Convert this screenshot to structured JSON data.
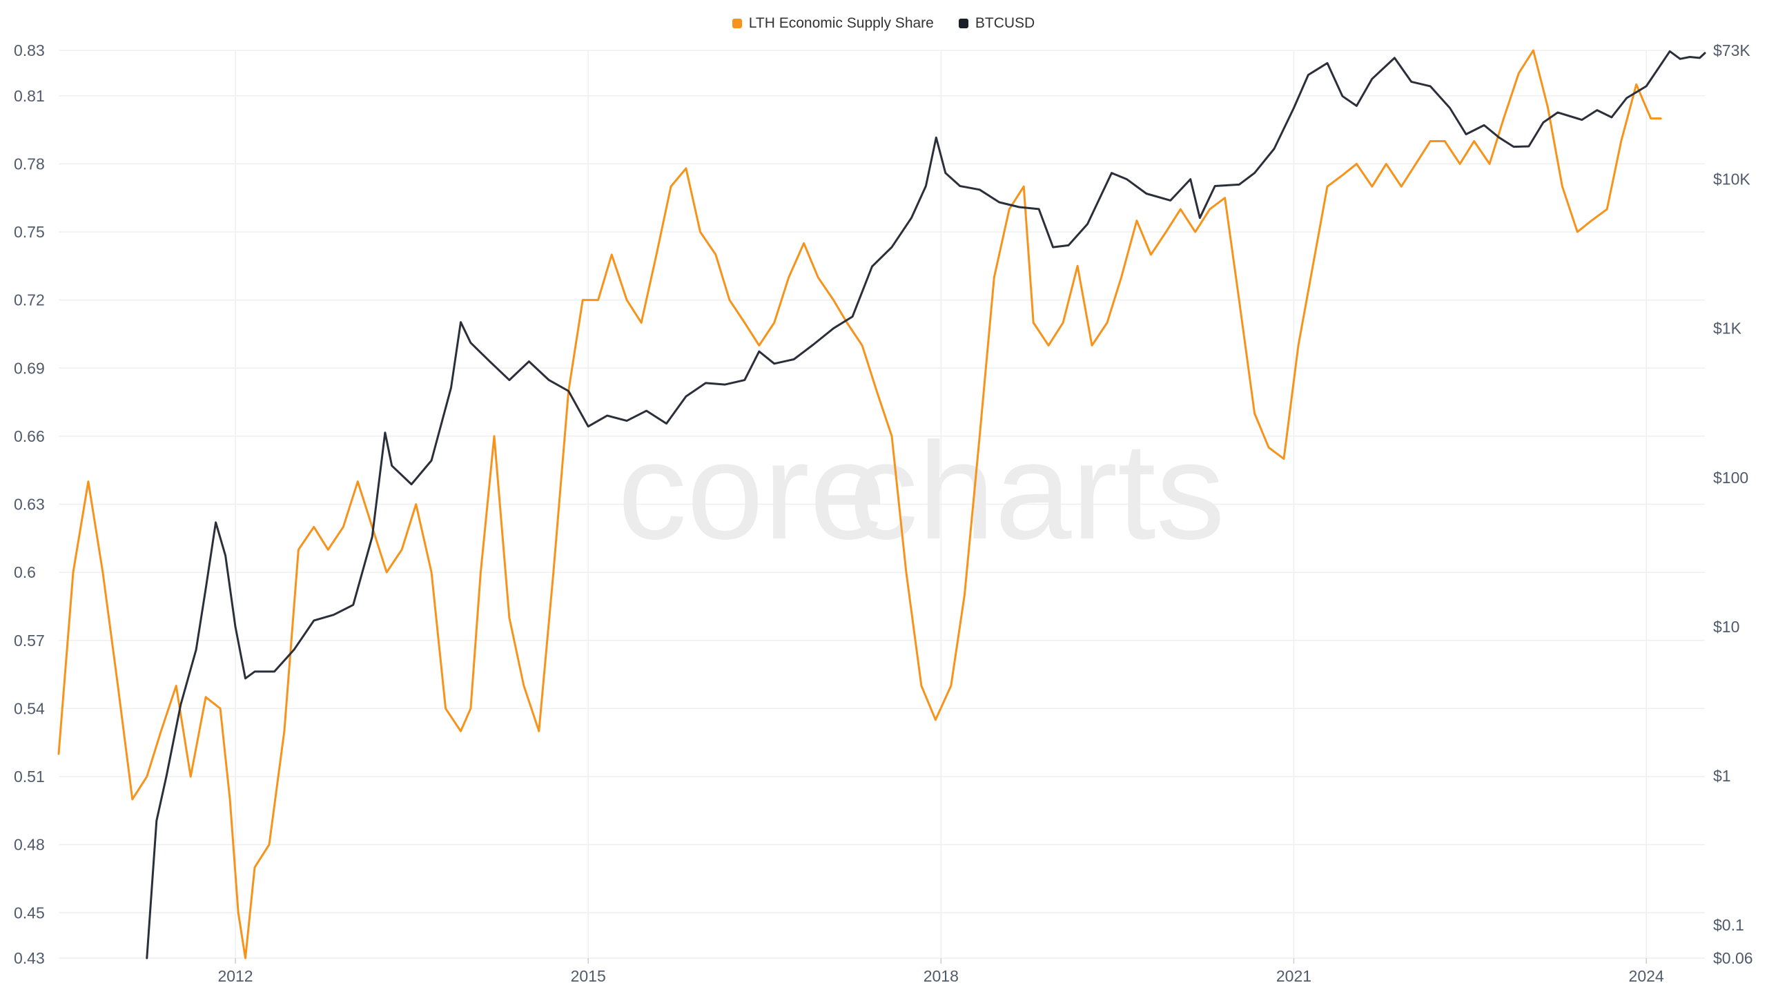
{
  "legend": [
    {
      "label": "LTH Economic Supply Share",
      "color": "#f7931a"
    },
    {
      "label": "BTCUSD",
      "color": "#1b1f2a"
    }
  ],
  "watermark": {
    "part1": "core",
    "part2": "charts"
  },
  "colors": {
    "lth": "#f7931a",
    "btc": "#2b2f3a",
    "grid": "#efefef",
    "axis_text": "#505a6b"
  },
  "chart_data": {
    "type": "line",
    "title": "",
    "xlabel": "",
    "ylabel": "",
    "grid": true,
    "legend_position": "top-center",
    "x_ticks": [
      "2012",
      "2015",
      "2018",
      "2021",
      "2024"
    ],
    "y_left": {
      "ticks": [
        "0.83",
        "0.81",
        "0.78",
        "0.75",
        "0.72",
        "0.69",
        "0.66",
        "0.63",
        "0.6",
        "0.57",
        "0.54",
        "0.51",
        "0.48",
        "0.45",
        "0.43"
      ],
      "range": [
        0.43,
        0.83
      ]
    },
    "y_right": {
      "scale": "log",
      "ticks": [
        "$73K",
        "$10K",
        "$1K",
        "$100",
        "$10",
        "$1",
        "$0.1",
        "$0.06"
      ],
      "tick_values": [
        73000,
        10000,
        1000,
        100,
        10,
        1,
        0.1,
        0.06
      ],
      "range": [
        0.06,
        73000
      ]
    },
    "x_range": [
      "2010-07-01",
      "2024-07-01"
    ],
    "series": [
      {
        "name": "LTH Economic Supply Share",
        "axis": "left",
        "points": [
          [
            "2010-07-01",
            0.52
          ],
          [
            "2010-08-15",
            0.6
          ],
          [
            "2010-10-01",
            0.64
          ],
          [
            "2010-11-15",
            0.6
          ],
          [
            "2011-01-01",
            0.55
          ],
          [
            "2011-02-15",
            0.5
          ],
          [
            "2011-04-01",
            0.51
          ],
          [
            "2011-05-15",
            0.53
          ],
          [
            "2011-07-01",
            0.55
          ],
          [
            "2011-08-15",
            0.51
          ],
          [
            "2011-10-01",
            0.545
          ],
          [
            "2011-11-15",
            0.54
          ],
          [
            "2011-12-15",
            0.5
          ],
          [
            "2012-01-10",
            0.45
          ],
          [
            "2012-02-01",
            0.43
          ],
          [
            "2012-03-01",
            0.47
          ],
          [
            "2012-04-15",
            0.48
          ],
          [
            "2012-06-01",
            0.53
          ],
          [
            "2012-07-15",
            0.61
          ],
          [
            "2012-09-01",
            0.62
          ],
          [
            "2012-10-15",
            0.61
          ],
          [
            "2012-12-01",
            0.62
          ],
          [
            "2013-01-15",
            0.64
          ],
          [
            "2013-03-01",
            0.62
          ],
          [
            "2013-04-15",
            0.6
          ],
          [
            "2013-06-01",
            0.61
          ],
          [
            "2013-07-15",
            0.63
          ],
          [
            "2013-09-01",
            0.6
          ],
          [
            "2013-10-15",
            0.54
          ],
          [
            "2013-12-01",
            0.53
          ],
          [
            "2014-01-01",
            0.54
          ],
          [
            "2014-02-01",
            0.6
          ],
          [
            "2014-03-15",
            0.66
          ],
          [
            "2014-05-01",
            0.58
          ],
          [
            "2014-06-15",
            0.55
          ],
          [
            "2014-08-01",
            0.53
          ],
          [
            "2014-09-15",
            0.6
          ],
          [
            "2014-11-01",
            0.68
          ],
          [
            "2014-12-15",
            0.72
          ],
          [
            "2015-02-01",
            0.72
          ],
          [
            "2015-03-15",
            0.74
          ],
          [
            "2015-05-01",
            0.72
          ],
          [
            "2015-06-15",
            0.71
          ],
          [
            "2015-08-01",
            0.74
          ],
          [
            "2015-09-15",
            0.77
          ],
          [
            "2015-11-01",
            0.778
          ],
          [
            "2015-12-15",
            0.75
          ],
          [
            "2016-02-01",
            0.74
          ],
          [
            "2016-03-15",
            0.72
          ],
          [
            "2016-05-01",
            0.71
          ],
          [
            "2016-06-15",
            0.7
          ],
          [
            "2016-08-01",
            0.71
          ],
          [
            "2016-09-15",
            0.73
          ],
          [
            "2016-11-01",
            0.745
          ],
          [
            "2016-12-15",
            0.73
          ],
          [
            "2017-02-01",
            0.72
          ],
          [
            "2017-03-15",
            0.71
          ],
          [
            "2017-05-01",
            0.7
          ],
          [
            "2017-06-15",
            0.68
          ],
          [
            "2017-08-01",
            0.66
          ],
          [
            "2017-09-15",
            0.6
          ],
          [
            "2017-11-01",
            0.55
          ],
          [
            "2017-12-15",
            0.535
          ],
          [
            "2018-02-01",
            0.55
          ],
          [
            "2018-03-15",
            0.59
          ],
          [
            "2018-05-01",
            0.66
          ],
          [
            "2018-06-15",
            0.73
          ],
          [
            "2018-08-01",
            0.76
          ],
          [
            "2018-09-15",
            0.77
          ],
          [
            "2018-10-15",
            0.71
          ],
          [
            "2018-12-01",
            0.7
          ],
          [
            "2019-01-15",
            0.71
          ],
          [
            "2019-03-01",
            0.735
          ],
          [
            "2019-04-15",
            0.7
          ],
          [
            "2019-06-01",
            0.71
          ],
          [
            "2019-07-15",
            0.73
          ],
          [
            "2019-09-01",
            0.755
          ],
          [
            "2019-10-15",
            0.74
          ],
          [
            "2019-12-01",
            0.75
          ],
          [
            "2020-01-15",
            0.76
          ],
          [
            "2020-03-01",
            0.75
          ],
          [
            "2020-04-15",
            0.76
          ],
          [
            "2020-06-01",
            0.765
          ],
          [
            "2020-07-15",
            0.72
          ],
          [
            "2020-09-01",
            0.67
          ],
          [
            "2020-10-15",
            0.655
          ],
          [
            "2020-12-01",
            0.65
          ],
          [
            "2021-01-15",
            0.7
          ],
          [
            "2021-03-01",
            0.735
          ],
          [
            "2021-04-15",
            0.77
          ],
          [
            "2021-06-01",
            0.775
          ],
          [
            "2021-07-15",
            0.78
          ],
          [
            "2021-09-01",
            0.77
          ],
          [
            "2021-10-15",
            0.78
          ],
          [
            "2021-12-01",
            0.77
          ],
          [
            "2022-01-15",
            0.78
          ],
          [
            "2022-03-01",
            0.79
          ],
          [
            "2022-04-15",
            0.79
          ],
          [
            "2022-06-01",
            0.78
          ],
          [
            "2022-07-15",
            0.79
          ],
          [
            "2022-09-01",
            0.78
          ],
          [
            "2022-10-15",
            0.8
          ],
          [
            "2022-12-01",
            0.82
          ],
          [
            "2023-01-15",
            0.83
          ],
          [
            "2023-03-01",
            0.805
          ],
          [
            "2023-04-15",
            0.77
          ],
          [
            "2023-06-01",
            0.75
          ],
          [
            "2023-07-15",
            0.755
          ],
          [
            "2023-09-01",
            0.76
          ],
          [
            "2023-10-15",
            0.79
          ],
          [
            "2023-12-01",
            0.815
          ],
          [
            "2024-01-15",
            0.8
          ],
          [
            "2024-02-15",
            0.8
          ]
        ]
      },
      {
        "name": "BTCUSD",
        "axis": "right",
        "points": [
          [
            "2011-04-01",
            0.06
          ],
          [
            "2011-05-01",
            0.5
          ],
          [
            "2011-06-01",
            1.0
          ],
          [
            "2011-07-15",
            3.0
          ],
          [
            "2011-09-01",
            7.0
          ],
          [
            "2011-10-01",
            18
          ],
          [
            "2011-11-01",
            50
          ],
          [
            "2011-12-01",
            30
          ],
          [
            "2012-01-01",
            10
          ],
          [
            "2012-02-01",
            4.5
          ],
          [
            "2012-03-01",
            5
          ],
          [
            "2012-05-01",
            5
          ],
          [
            "2012-07-01",
            7
          ],
          [
            "2012-09-01",
            11
          ],
          [
            "2012-11-01",
            12
          ],
          [
            "2013-01-01",
            14
          ],
          [
            "2013-03-01",
            40
          ],
          [
            "2013-04-10",
            200
          ],
          [
            "2013-05-01",
            120
          ],
          [
            "2013-07-01",
            90
          ],
          [
            "2013-09-01",
            130
          ],
          [
            "2013-11-01",
            400
          ],
          [
            "2013-12-01",
            1100
          ],
          [
            "2014-01-01",
            800
          ],
          [
            "2014-03-01",
            600
          ],
          [
            "2014-05-01",
            450
          ],
          [
            "2014-07-01",
            600
          ],
          [
            "2014-09-01",
            450
          ],
          [
            "2014-11-01",
            380
          ],
          [
            "2015-01-01",
            220
          ],
          [
            "2015-03-01",
            260
          ],
          [
            "2015-05-01",
            240
          ],
          [
            "2015-07-01",
            280
          ],
          [
            "2015-09-01",
            230
          ],
          [
            "2015-11-01",
            350
          ],
          [
            "2016-01-01",
            430
          ],
          [
            "2016-03-01",
            420
          ],
          [
            "2016-05-01",
            450
          ],
          [
            "2016-06-15",
            700
          ],
          [
            "2016-08-01",
            580
          ],
          [
            "2016-10-01",
            620
          ],
          [
            "2016-12-01",
            780
          ],
          [
            "2017-02-01",
            1000
          ],
          [
            "2017-04-01",
            1200
          ],
          [
            "2017-06-01",
            2600
          ],
          [
            "2017-08-01",
            3500
          ],
          [
            "2017-10-01",
            5500
          ],
          [
            "2017-11-15",
            9000
          ],
          [
            "2017-12-17",
            19000
          ],
          [
            "2018-01-15",
            11000
          ],
          [
            "2018-03-01",
            9000
          ],
          [
            "2018-05-01",
            8500
          ],
          [
            "2018-07-01",
            7000
          ],
          [
            "2018-09-01",
            6500
          ],
          [
            "2018-11-01",
            6300
          ],
          [
            "2018-12-15",
            3500
          ],
          [
            "2019-02-01",
            3600
          ],
          [
            "2019-04-01",
            5000
          ],
          [
            "2019-06-15",
            11000
          ],
          [
            "2019-08-01",
            10000
          ],
          [
            "2019-10-01",
            8000
          ],
          [
            "2019-12-15",
            7200
          ],
          [
            "2020-02-15",
            10000
          ],
          [
            "2020-03-15",
            5500
          ],
          [
            "2020-05-01",
            9000
          ],
          [
            "2020-07-15",
            9200
          ],
          [
            "2020-09-01",
            11000
          ],
          [
            "2020-11-01",
            16000
          ],
          [
            "2021-01-01",
            30000
          ],
          [
            "2021-02-15",
            50000
          ],
          [
            "2021-04-15",
            60000
          ],
          [
            "2021-06-01",
            36000
          ],
          [
            "2021-07-15",
            31000
          ],
          [
            "2021-09-01",
            47000
          ],
          [
            "2021-11-10",
            65000
          ],
          [
            "2022-01-01",
            45000
          ],
          [
            "2022-03-01",
            42000
          ],
          [
            "2022-05-01",
            30000
          ],
          [
            "2022-06-20",
            20000
          ],
          [
            "2022-08-15",
            23000
          ],
          [
            "2022-10-01",
            19000
          ],
          [
            "2022-11-15",
            16500
          ],
          [
            "2023-01-01",
            16600
          ],
          [
            "2023-02-15",
            24000
          ],
          [
            "2023-04-01",
            28000
          ],
          [
            "2023-06-15",
            25000
          ],
          [
            "2023-08-01",
            29000
          ],
          [
            "2023-09-15",
            26000
          ],
          [
            "2023-11-01",
            35000
          ],
          [
            "2024-01-01",
            42000
          ],
          [
            "2024-03-14",
            72000
          ],
          [
            "2024-04-15",
            64000
          ],
          [
            "2024-05-15",
            66000
          ],
          [
            "2024-06-15",
            65000
          ],
          [
            "2024-07-01",
            70000
          ]
        ]
      }
    ]
  }
}
